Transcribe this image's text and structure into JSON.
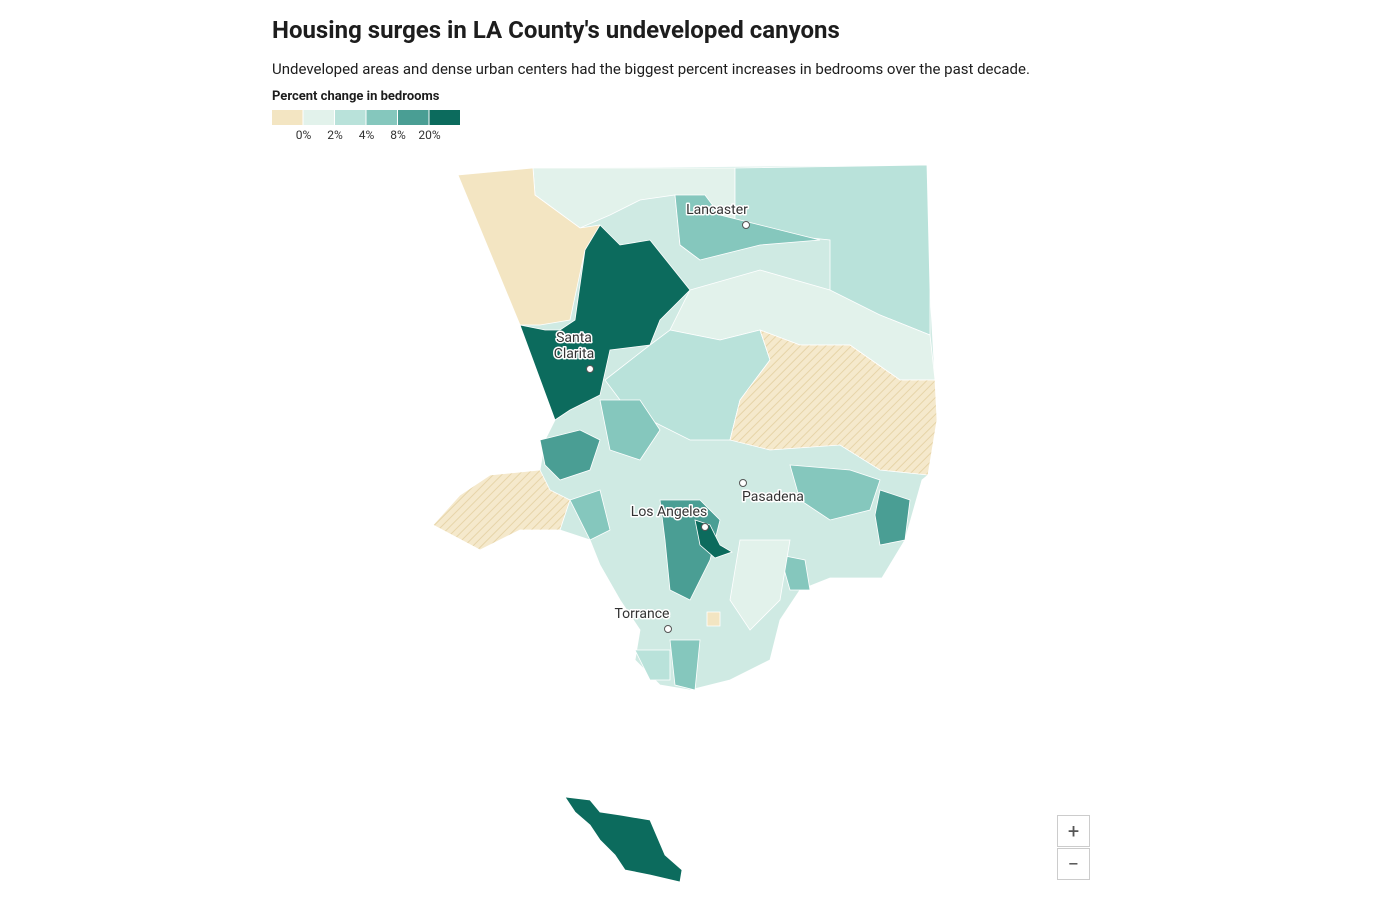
{
  "header": {
    "title": "Housing surges in LA County's undeveloped canyons",
    "subtitle": "Undeveloped areas and dense urban centers had the biggest percent increases in bedrooms over the past decade."
  },
  "legend": {
    "title": "Percent change in bedrooms",
    "colors": [
      "#f3e5c2",
      "#e2f2eb",
      "#b9e2da",
      "#85c7bd",
      "#4a9e94",
      "#0c6b5d"
    ],
    "ticks": [
      "0%",
      "2%",
      "4%",
      "8%",
      "20%"
    ]
  },
  "cities": [
    "Lancaster",
    "Santa Clarita",
    "Pasadena",
    "Los Angeles",
    "Torrance"
  ],
  "zoom": {
    "in": "+",
    "out": "−"
  }
}
